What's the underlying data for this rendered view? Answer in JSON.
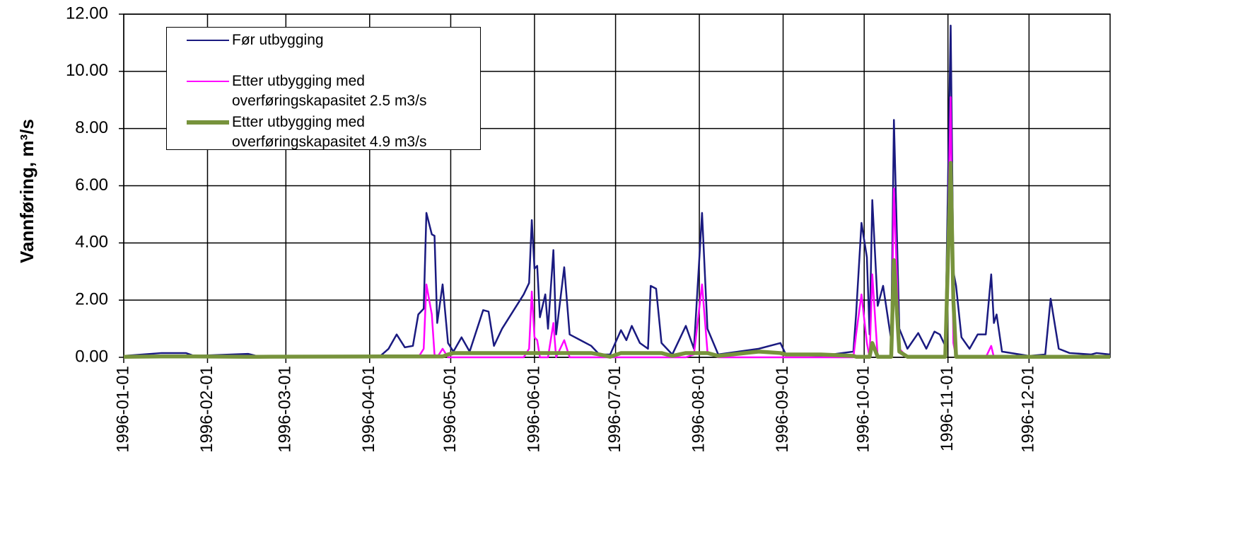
{
  "chart_data": {
    "type": "line",
    "y_label": "Vannføring, m³/s",
    "xlim": [
      "1996-01-01",
      "1996-12-31"
    ],
    "xticks": [
      "1996-01-01",
      "1996-02-01",
      "1996-03-01",
      "1996-04-01",
      "1996-05-01",
      "1996-06-01",
      "1996-07-01",
      "1996-08-01",
      "1996-09-01",
      "1996-10-01",
      "1996-11-01",
      "1996-12-01"
    ],
    "ylim": [
      0,
      12
    ],
    "yticks": [
      {
        "value": 0,
        "label": "0.00"
      },
      {
        "value": 2,
        "label": "2.00"
      },
      {
        "value": 4,
        "label": "4.00"
      },
      {
        "value": 6,
        "label": "6.00"
      },
      {
        "value": 8,
        "label": "8.00"
      },
      {
        "value": 10,
        "label": "10.00"
      },
      {
        "value": 12,
        "label": "12.00"
      }
    ],
    "grid": true,
    "legend": "upper left",
    "x": [
      "1996-01-01",
      "1996-01-15",
      "1996-01-24",
      "1996-01-27",
      "1996-02-16",
      "1996-02-20",
      "1996-04-05",
      "1996-04-08",
      "1996-04-11",
      "1996-04-14",
      "1996-04-17",
      "1996-04-19",
      "1996-04-21",
      "1996-04-22",
      "1996-04-24",
      "1996-04-25",
      "1996-04-26",
      "1996-04-28",
      "1996-04-30",
      "1996-05-02",
      "1996-05-05",
      "1996-05-08",
      "1996-05-13",
      "1996-05-15",
      "1996-05-17",
      "1996-05-20",
      "1996-05-28",
      "1996-05-30",
      "1996-05-31",
      "1996-06-01",
      "1996-06-02",
      "1996-06-03",
      "1996-06-05",
      "1996-06-06",
      "1996-06-08",
      "1996-06-09",
      "1996-06-12",
      "1996-06-14",
      "1996-06-18",
      "1996-06-22",
      "1996-06-25",
      "1996-06-29",
      "1996-07-03",
      "1996-07-05",
      "1996-07-07",
      "1996-07-10",
      "1996-07-13",
      "1996-07-14",
      "1996-07-16",
      "1996-07-18",
      "1996-07-22",
      "1996-07-27",
      "1996-07-30",
      "1996-08-02",
      "1996-08-04",
      "1996-08-08",
      "1996-08-23",
      "1996-08-31",
      "1996-09-02",
      "1996-09-15",
      "1996-09-27",
      "1996-09-28",
      "1996-09-30",
      "1996-10-02",
      "1996-10-03",
      "1996-10-04",
      "1996-10-06",
      "1996-10-08",
      "1996-10-11",
      "1996-10-12",
      "1996-10-14",
      "1996-10-17",
      "1996-10-21",
      "1996-10-24",
      "1996-10-27",
      "1996-10-29",
      "1996-10-31",
      "1996-11-02",
      "1996-11-03",
      "1996-11-04",
      "1996-11-06",
      "1996-11-09",
      "1996-11-12",
      "1996-11-15",
      "1996-11-17",
      "1996-11-18",
      "1996-11-19",
      "1996-11-21",
      "1996-12-01",
      "1996-12-07",
      "1996-12-09",
      "1996-12-12",
      "1996-12-16",
      "1996-12-24",
      "1996-12-26",
      "1996-12-31"
    ],
    "series": [
      {
        "name": "Før utbygging",
        "color": "#1a1a80",
        "width": 2.5,
        "values": [
          0.05,
          0.15,
          0.15,
          0.05,
          0.12,
          0.03,
          0.05,
          0.3,
          0.8,
          0.35,
          0.4,
          1.5,
          1.7,
          5.05,
          4.3,
          4.25,
          1.2,
          2.55,
          0.5,
          0.2,
          0.7,
          0.2,
          1.65,
          1.6,
          0.4,
          1.0,
          2.2,
          2.6,
          4.8,
          3.1,
          3.2,
          1.4,
          2.2,
          1.0,
          3.75,
          0.8,
          3.15,
          0.8,
          0.6,
          0.4,
          0.1,
          0.1,
          0.95,
          0.6,
          1.1,
          0.5,
          0.3,
          2.5,
          2.4,
          0.5,
          0.1,
          1.1,
          0.3,
          5.05,
          1.0,
          0.1,
          0.3,
          0.5,
          0.1,
          0.05,
          0.2,
          1.5,
          4.7,
          3.5,
          0.8,
          5.5,
          1.8,
          2.5,
          0.6,
          8.3,
          1.0,
          0.3,
          0.85,
          0.3,
          0.9,
          0.8,
          0.4,
          11.6,
          3.0,
          2.5,
          0.7,
          0.3,
          0.8,
          0.8,
          2.9,
          1.2,
          1.5,
          0.2,
          0.05,
          0.1,
          2.05,
          0.3,
          0.15,
          0.1,
          0.15,
          0.1
        ]
      },
      {
        "name": "Etter utbygging med overføringskapasitet 2.5 m3/s",
        "color": "#ff00ff",
        "width": 2.5,
        "values": [
          0,
          0,
          0,
          0,
          0,
          0,
          0,
          0,
          0,
          0,
          0,
          0,
          0.3,
          2.55,
          1.5,
          0.1,
          0,
          0.3,
          0,
          0,
          0,
          0,
          0,
          0,
          0,
          0,
          0,
          0.3,
          2.3,
          0.7,
          0.6,
          0,
          0,
          0,
          1.2,
          0,
          0.6,
          0,
          0,
          0,
          0,
          0,
          0,
          0,
          0,
          0,
          0,
          0,
          0,
          0,
          0,
          0,
          0.1,
          2.55,
          0.2,
          0,
          0,
          0,
          0,
          0,
          0,
          0.8,
          2.2,
          0.5,
          0,
          2.9,
          0,
          0,
          0,
          5.9,
          0.3,
          0,
          0,
          0,
          0,
          0,
          0,
          9.1,
          0.5,
          0,
          0,
          0,
          0,
          0,
          0.4,
          0,
          0,
          0,
          0,
          0,
          0,
          0,
          0,
          0,
          0,
          0
        ]
      },
      {
        "name": "Etter utbygging med overføringskapasitet 4.9 m3/s",
        "color": "#77933c",
        "width": 5.5,
        "values": [
          0.02,
          0.03,
          0.03,
          0.03,
          0.02,
          0.02,
          0.03,
          0.03,
          0.03,
          0.03,
          0.03,
          0.03,
          0.03,
          0.03,
          0.03,
          0.03,
          0.03,
          0.03,
          0.1,
          0.15,
          0.15,
          0.15,
          0.15,
          0.15,
          0.15,
          0.15,
          0.15,
          0.15,
          0.15,
          0.15,
          0.15,
          0.15,
          0.15,
          0.15,
          0.15,
          0.15,
          0.15,
          0.15,
          0.15,
          0.15,
          0.1,
          0.02,
          0.15,
          0.15,
          0.15,
          0.15,
          0.15,
          0.15,
          0.15,
          0.15,
          0.05,
          0.15,
          0.15,
          0.15,
          0.15,
          0.05,
          0.2,
          0.15,
          0.1,
          0.1,
          0.05,
          0.02,
          0.02,
          0.02,
          0.02,
          0.5,
          0.02,
          0.02,
          0.02,
          3.4,
          0.2,
          0.02,
          0.02,
          0.02,
          0.02,
          0.02,
          0.02,
          6.8,
          2.0,
          0.02,
          0.02,
          0.02,
          0.02,
          0.02,
          0.02,
          0.02,
          0.02,
          0.02,
          0.02,
          0.02,
          0.02,
          0.02,
          0.02,
          0.02,
          0.02,
          0.02
        ]
      }
    ]
  }
}
